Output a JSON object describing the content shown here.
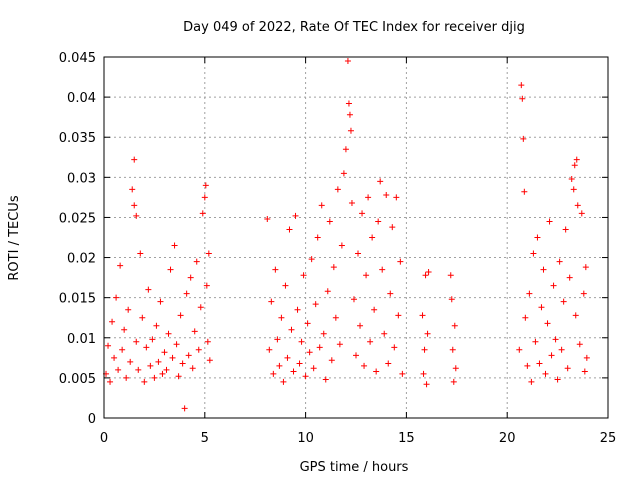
{
  "chart_data": {
    "type": "scatter",
    "title": "Day 049 of 2022, Rate Of TEC Index for receiver djig",
    "xlabel": "GPS time / hours",
    "ylabel": "ROTI / TECUs",
    "xlim": [
      0,
      25
    ],
    "ylim": [
      0,
      0.045
    ],
    "xticks": [
      "0",
      "5",
      "10",
      "15",
      "20",
      "25"
    ],
    "yticks": [
      "0",
      "0.005",
      "0.01",
      "0.015",
      "0.02",
      "0.025",
      "0.03",
      "0.035",
      "0.04",
      "0.045"
    ],
    "grid": true,
    "marker": "+",
    "color": "#ff0000",
    "series": [
      {
        "points": [
          [
            0.1,
            0.0055
          ],
          [
            0.2,
            0.009
          ],
          [
            0.3,
            0.0045
          ],
          [
            0.4,
            0.012
          ],
          [
            0.5,
            0.0075
          ],
          [
            0.6,
            0.015
          ],
          [
            0.7,
            0.006
          ],
          [
            0.8,
            0.019
          ],
          [
            0.9,
            0.0085
          ],
          [
            1.0,
            0.011
          ],
          [
            1.1,
            0.005
          ],
          [
            1.2,
            0.0135
          ],
          [
            1.3,
            0.007
          ],
          [
            1.4,
            0.0285
          ],
          [
            1.5,
            0.0322
          ],
          [
            1.5,
            0.0265
          ],
          [
            1.6,
            0.0252
          ],
          [
            1.6,
            0.0095
          ],
          [
            1.7,
            0.006
          ],
          [
            1.8,
            0.0205
          ],
          [
            1.9,
            0.0125
          ],
          [
            2.0,
            0.0045
          ],
          [
            2.1,
            0.0088
          ],
          [
            2.2,
            0.016
          ],
          [
            2.3,
            0.0065
          ],
          [
            2.4,
            0.0098
          ],
          [
            2.5,
            0.005
          ],
          [
            2.6,
            0.0115
          ],
          [
            2.7,
            0.007
          ],
          [
            2.8,
            0.0145
          ],
          [
            2.9,
            0.0055
          ],
          [
            3.0,
            0.0082
          ],
          [
            3.1,
            0.006
          ],
          [
            3.2,
            0.0105
          ],
          [
            3.3,
            0.0185
          ],
          [
            3.4,
            0.0075
          ],
          [
            3.5,
            0.0215
          ],
          [
            3.6,
            0.0092
          ],
          [
            3.7,
            0.0052
          ],
          [
            3.8,
            0.0128
          ],
          [
            3.9,
            0.0068
          ],
          [
            4.0,
            0.0012
          ],
          [
            4.1,
            0.0155
          ],
          [
            4.2,
            0.0078
          ],
          [
            4.3,
            0.0175
          ],
          [
            4.4,
            0.0062
          ],
          [
            4.5,
            0.0108
          ],
          [
            4.6,
            0.0195
          ],
          [
            4.7,
            0.0085
          ],
          [
            4.8,
            0.0138
          ],
          [
            4.9,
            0.0255
          ],
          [
            5.0,
            0.0275
          ],
          [
            5.05,
            0.029
          ],
          [
            5.1,
            0.0165
          ],
          [
            5.15,
            0.0095
          ],
          [
            5.2,
            0.0205
          ],
          [
            5.25,
            0.0072
          ],
          [
            8.1,
            0.0248
          ],
          [
            8.2,
            0.0085
          ],
          [
            8.3,
            0.0145
          ],
          [
            8.4,
            0.0055
          ],
          [
            8.5,
            0.0185
          ],
          [
            8.6,
            0.0098
          ],
          [
            8.7,
            0.0065
          ],
          [
            8.8,
            0.0125
          ],
          [
            8.9,
            0.0045
          ],
          [
            9.0,
            0.0165
          ],
          [
            9.1,
            0.0075
          ],
          [
            9.2,
            0.0235
          ],
          [
            9.3,
            0.011
          ],
          [
            9.4,
            0.0058
          ],
          [
            9.5,
            0.0252
          ],
          [
            9.6,
            0.0135
          ],
          [
            9.7,
            0.0068
          ],
          [
            9.8,
            0.0095
          ],
          [
            9.9,
            0.0178
          ],
          [
            10.0,
            0.0052
          ],
          [
            10.1,
            0.0118
          ],
          [
            10.2,
            0.0082
          ],
          [
            10.3,
            0.0198
          ],
          [
            10.4,
            0.0062
          ],
          [
            10.5,
            0.0142
          ],
          [
            10.6,
            0.0225
          ],
          [
            10.7,
            0.0088
          ],
          [
            10.8,
            0.0265
          ],
          [
            10.9,
            0.0105
          ],
          [
            11.0,
            0.0048
          ],
          [
            11.1,
            0.0158
          ],
          [
            11.2,
            0.0245
          ],
          [
            11.3,
            0.0072
          ],
          [
            11.4,
            0.0188
          ],
          [
            11.5,
            0.0125
          ],
          [
            11.6,
            0.0285
          ],
          [
            11.7,
            0.0092
          ],
          [
            11.8,
            0.0215
          ],
          [
            11.9,
            0.0305
          ],
          [
            12.0,
            0.0335
          ],
          [
            12.1,
            0.0445
          ],
          [
            12.15,
            0.0392
          ],
          [
            12.2,
            0.0378
          ],
          [
            12.25,
            0.0358
          ],
          [
            12.3,
            0.0268
          ],
          [
            12.4,
            0.0148
          ],
          [
            12.5,
            0.0078
          ],
          [
            12.6,
            0.0205
          ],
          [
            12.7,
            0.0115
          ],
          [
            12.8,
            0.0255
          ],
          [
            12.9,
            0.0065
          ],
          [
            13.0,
            0.0178
          ],
          [
            13.1,
            0.0275
          ],
          [
            13.2,
            0.0095
          ],
          [
            13.3,
            0.0225
          ],
          [
            13.4,
            0.0135
          ],
          [
            13.5,
            0.0058
          ],
          [
            13.6,
            0.0245
          ],
          [
            13.7,
            0.0295
          ],
          [
            13.8,
            0.0185
          ],
          [
            13.9,
            0.0105
          ],
          [
            14.0,
            0.0278
          ],
          [
            14.1,
            0.0068
          ],
          [
            14.2,
            0.0155
          ],
          [
            14.3,
            0.0238
          ],
          [
            14.4,
            0.0088
          ],
          [
            14.5,
            0.0275
          ],
          [
            14.6,
            0.0128
          ],
          [
            14.7,
            0.0195
          ],
          [
            14.8,
            0.0055
          ],
          [
            15.8,
            0.0128
          ],
          [
            15.85,
            0.0055
          ],
          [
            15.9,
            0.0085
          ],
          [
            15.95,
            0.0178
          ],
          [
            16.0,
            0.0042
          ],
          [
            16.05,
            0.0105
          ],
          [
            16.1,
            0.0182
          ],
          [
            17.2,
            0.0178
          ],
          [
            17.25,
            0.0148
          ],
          [
            17.3,
            0.0085
          ],
          [
            17.35,
            0.0045
          ],
          [
            17.4,
            0.0115
          ],
          [
            17.45,
            0.0062
          ],
          [
            20.6,
            0.0085
          ],
          [
            20.7,
            0.0415
          ],
          [
            20.75,
            0.0398
          ],
          [
            20.8,
            0.0348
          ],
          [
            20.85,
            0.0282
          ],
          [
            20.9,
            0.0125
          ],
          [
            21.0,
            0.0065
          ],
          [
            21.1,
            0.0155
          ],
          [
            21.2,
            0.0045
          ],
          [
            21.3,
            0.0205
          ],
          [
            21.4,
            0.0095
          ],
          [
            21.5,
            0.0225
          ],
          [
            21.6,
            0.0068
          ],
          [
            21.7,
            0.0138
          ],
          [
            21.8,
            0.0185
          ],
          [
            21.9,
            0.0055
          ],
          [
            22.0,
            0.0118
          ],
          [
            22.1,
            0.0245
          ],
          [
            22.2,
            0.0078
          ],
          [
            22.3,
            0.0165
          ],
          [
            22.4,
            0.0098
          ],
          [
            22.5,
            0.0048
          ],
          [
            22.6,
            0.0195
          ],
          [
            22.7,
            0.0085
          ],
          [
            22.8,
            0.0145
          ],
          [
            22.9,
            0.0235
          ],
          [
            23.0,
            0.0062
          ],
          [
            23.1,
            0.0175
          ],
          [
            23.2,
            0.0298
          ],
          [
            23.3,
            0.0285
          ],
          [
            23.35,
            0.0315
          ],
          [
            23.4,
            0.0128
          ],
          [
            23.45,
            0.0322
          ],
          [
            23.5,
            0.0265
          ],
          [
            23.6,
            0.0092
          ],
          [
            23.7,
            0.0255
          ],
          [
            23.8,
            0.0155
          ],
          [
            23.85,
            0.0058
          ],
          [
            23.9,
            0.0188
          ],
          [
            23.95,
            0.0075
          ]
        ]
      }
    ]
  }
}
